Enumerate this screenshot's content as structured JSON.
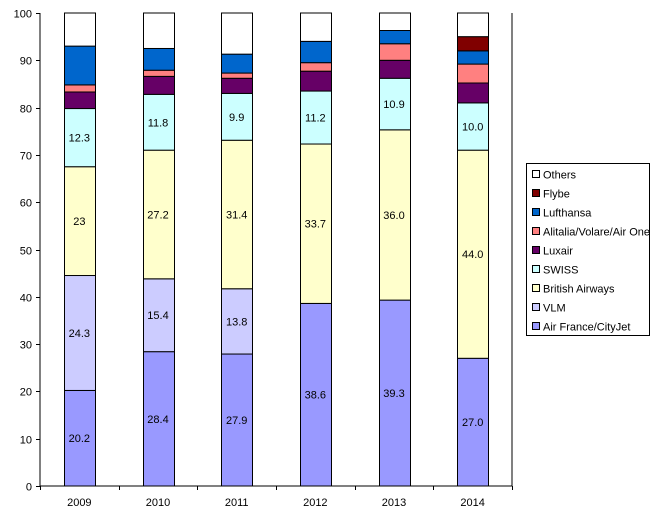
{
  "chart_data": {
    "type": "bar",
    "stacked": true,
    "categories": [
      "2009",
      "2010",
      "2011",
      "2012",
      "2013",
      "2014"
    ],
    "ylim": [
      0,
      100
    ],
    "yticks": [
      0,
      10,
      20,
      30,
      40,
      50,
      60,
      70,
      80,
      90,
      100
    ],
    "grid": false,
    "legend_position": "right",
    "series": [
      {
        "name": "Air France/CityJet",
        "color": "#9999ff",
        "values": [
          20.2,
          28.4,
          27.9,
          38.6,
          39.3,
          27.0
        ],
        "labels": [
          "20.2",
          "28.4",
          "27.9",
          "38.6",
          "39.3",
          "27.0"
        ]
      },
      {
        "name": "VLM",
        "color": "#ccccff",
        "values": [
          24.3,
          15.4,
          13.8,
          0,
          0,
          0
        ],
        "labels": [
          "24.3",
          "15.4",
          "13.8",
          "",
          "",
          ""
        ]
      },
      {
        "name": "British Airways",
        "color": "#ffffcc",
        "values": [
          23,
          27.2,
          31.4,
          33.7,
          36.0,
          44.0
        ],
        "labels": [
          "23",
          "27.2",
          "31.4",
          "33.7",
          "36.0",
          "44.0"
        ]
      },
      {
        "name": "SWISS",
        "color": "#ccffff",
        "values": [
          12.3,
          11.8,
          9.9,
          11.2,
          10.9,
          10.0
        ],
        "labels": [
          "12.3",
          "11.8",
          "9.9",
          "11.2",
          "10.9",
          "10.0"
        ]
      },
      {
        "name": "Luxair",
        "color": "#660066",
        "values": [
          3.5,
          3.8,
          3.2,
          4.2,
          3.8,
          4.2
        ],
        "labels": [
          "",
          "",
          "",
          "",
          "",
          ""
        ]
      },
      {
        "name": "Alitalia/Volare/Air One",
        "color": "#ff8080",
        "values": [
          1.5,
          1.3,
          1.1,
          1.8,
          3.5,
          4.0
        ],
        "labels": [
          "",
          "",
          "",
          "",
          "",
          ""
        ]
      },
      {
        "name": "Lufthansa",
        "color": "#0066cc",
        "values": [
          8.2,
          4.6,
          4.0,
          4.5,
          2.8,
          2.8
        ],
        "labels": [
          "",
          "",
          "",
          "",
          "",
          ""
        ]
      },
      {
        "name": "Flybe",
        "color": "#800000",
        "values": [
          0,
          0,
          0,
          0,
          0,
          3.0
        ],
        "labels": [
          "",
          "",
          "",
          "",
          "",
          ""
        ]
      },
      {
        "name": "Others",
        "color": "#ffffff",
        "values": [
          7.0,
          7.5,
          8.7,
          6.0,
          3.7,
          5.0
        ],
        "labels": [
          "",
          "",
          "",
          "",
          "",
          ""
        ]
      }
    ]
  }
}
